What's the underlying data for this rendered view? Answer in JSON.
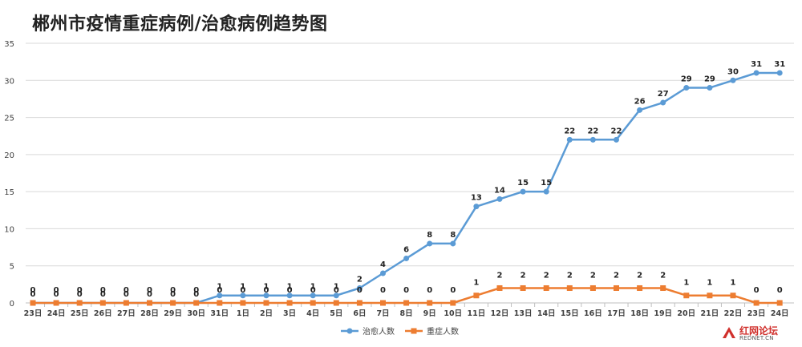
{
  "colors": {
    "cured": "#5b9bd5",
    "severe": "#ed7d31",
    "grid": "#d9d9d9",
    "axis_text": "#404040",
    "label_text": "#222222",
    "watermark": "#d0302c"
  },
  "chart_data": {
    "type": "line",
    "title": "郴州市疫情重症病例/治愈病例趋势图",
    "categories": [
      "23日",
      "24日",
      "25日",
      "26日",
      "27日",
      "28日",
      "29日",
      "30日",
      "31日",
      "1日",
      "2日",
      "3日",
      "4日",
      "5日",
      "6日",
      "7日",
      "8日",
      "9日",
      "10日",
      "11日",
      "12日",
      "13日",
      "14日",
      "15日",
      "16日",
      "17日",
      "18日",
      "19日",
      "20日",
      "21日",
      "22日",
      "23日",
      "24日"
    ],
    "series": [
      {
        "name": "治愈人数",
        "color": "#5b9bd5",
        "marker": "circle",
        "values": [
          0,
          0,
          0,
          0,
          0,
          0,
          0,
          0,
          1,
          1,
          1,
          1,
          1,
          1,
          2,
          4,
          6,
          8,
          8,
          13,
          14,
          15,
          15,
          22,
          22,
          22,
          26,
          27,
          29,
          29,
          30,
          31,
          31
        ]
      },
      {
        "name": "重症人数",
        "color": "#ed7d31",
        "marker": "square",
        "values": [
          0,
          0,
          0,
          0,
          0,
          0,
          0,
          0,
          0,
          0,
          0,
          0,
          0,
          0,
          0,
          0,
          0,
          0,
          0,
          1,
          2,
          2,
          2,
          2,
          2,
          2,
          2,
          2,
          1,
          1,
          1,
          0,
          0
        ]
      }
    ],
    "yticks": [
      0,
      5,
      10,
      15,
      20,
      25,
      30,
      35
    ],
    "ylim": [
      0,
      35
    ],
    "xlabel": "",
    "ylabel": "",
    "grid": true,
    "legend_position": "bottom-center"
  },
  "watermark": {
    "name": "红网论坛",
    "site": "REDNET.CN"
  }
}
